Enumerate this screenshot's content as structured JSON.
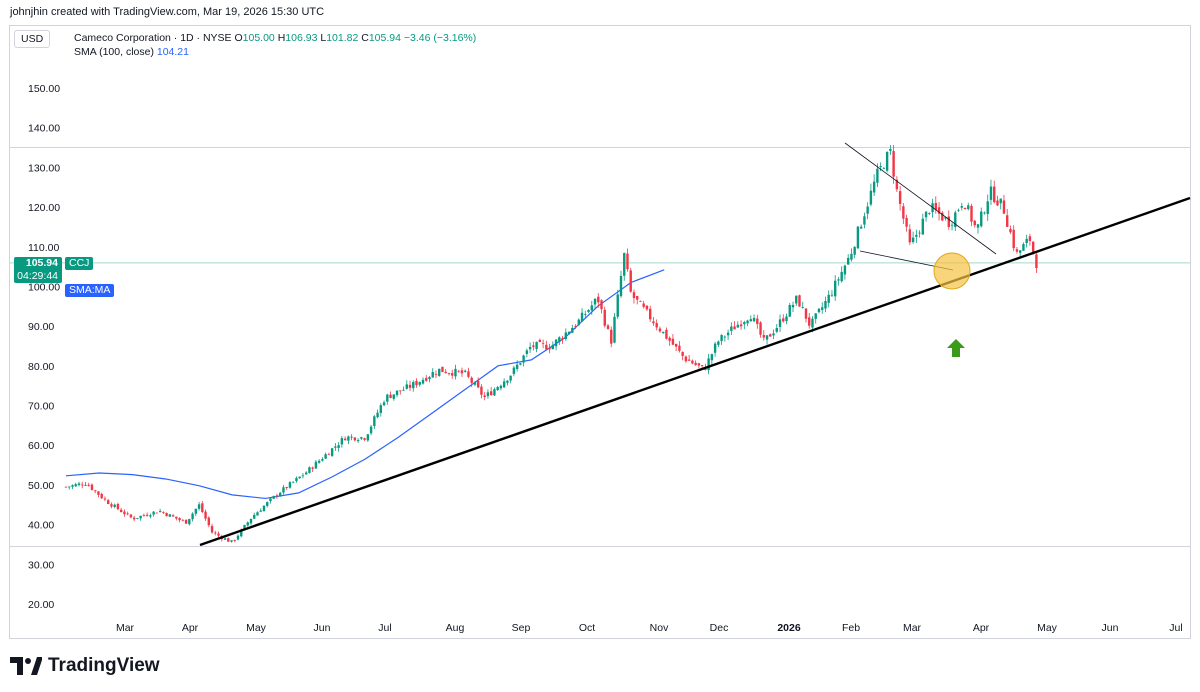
{
  "header": {
    "credit": "johnjhin created with TradingView.com, Mar 19, 2026 15:30 UTC"
  },
  "currency": "USD",
  "legend": {
    "title": "Cameco Corporation · 1D · NYSE",
    "o_label": "O",
    "o": "105.00",
    "h_label": "H",
    "h": "106.93",
    "l_label": "L",
    "l": "101.82",
    "c_label": "C",
    "c": "105.94",
    "change": "−3.46 (−3.16%)",
    "sma_label": "SMA (100, close)",
    "sma_value": "104.21"
  },
  "badges": {
    "price": "105.94",
    "countdown": "04:29:44",
    "ticker": "CCJ",
    "sma": "SMA:MA"
  },
  "footer": {
    "brand": "TradingView",
    "logo_icon": "tradingview-logo-icon"
  },
  "colors": {
    "up": "#089981",
    "down": "#f23645",
    "sma": "#2962ff",
    "trend": "#000000",
    "highlight": "#f5c242",
    "arrow": "#3a9a1a"
  },
  "chart_data": {
    "type": "candlestick",
    "symbol": "CCJ",
    "ylim": [
      15,
      155
    ],
    "y_ticks": [
      "150.00",
      "140.00",
      "130.00",
      "120.00",
      "110.00",
      "100.00",
      "90.00",
      "80.00",
      "70.00",
      "60.00",
      "50.00",
      "40.00",
      "30.00",
      "20.00"
    ],
    "x_ticks": [
      "Mar",
      "Apr",
      "May",
      "Jun",
      "Jul",
      "Aug",
      "Sep",
      "Oct",
      "Nov",
      "Dec",
      "2026",
      "Feb",
      "Mar",
      "Apr",
      "May",
      "Jun",
      "Jul"
    ],
    "x_ticks_bold": [
      "2026"
    ],
    "last_close": 105.94,
    "series": [
      {
        "name": "SMA (100, close)",
        "points": [
          [
            0,
            52.3
          ],
          [
            0.05,
            53
          ],
          [
            0.1,
            52.6
          ],
          [
            0.15,
            51.5
          ],
          [
            0.2,
            49.8
          ],
          [
            0.25,
            47.5
          ],
          [
            0.3,
            46.6
          ],
          [
            0.35,
            48
          ],
          [
            0.4,
            52
          ],
          [
            0.45,
            56.5
          ],
          [
            0.5,
            62
          ],
          [
            0.55,
            68
          ],
          [
            0.6,
            74
          ],
          [
            0.65,
            80
          ],
          [
            0.7,
            81.5
          ],
          [
            0.75,
            87
          ],
          [
            0.8,
            95
          ],
          [
            0.85,
            101
          ],
          [
            0.9,
            104.2
          ]
        ]
      }
    ],
    "ohlc_path": [
      [
        0,
        49.5
      ],
      [
        0.03,
        50.5
      ],
      [
        0.06,
        46
      ],
      [
        0.1,
        41.5
      ],
      [
        0.14,
        43.5
      ],
      [
        0.18,
        40.5
      ],
      [
        0.2,
        45
      ],
      [
        0.22,
        38
      ],
      [
        0.25,
        35.5
      ],
      [
        0.28,
        42
      ],
      [
        0.32,
        48
      ],
      [
        0.36,
        53
      ],
      [
        0.38,
        56
      ],
      [
        0.42,
        62
      ],
      [
        0.45,
        62
      ],
      [
        0.48,
        72
      ],
      [
        0.52,
        75
      ],
      [
        0.56,
        79
      ],
      [
        0.6,
        78
      ],
      [
        0.63,
        72
      ],
      [
        0.67,
        78
      ],
      [
        0.7,
        85
      ],
      [
        0.73,
        85
      ],
      [
        0.77,
        91
      ],
      [
        0.8,
        97
      ],
      [
        0.82,
        86
      ],
      [
        0.84,
        108
      ],
      [
        0.85,
        98
      ],
      [
        0.87,
        94
      ],
      [
        0.9,
        88
      ],
      [
        0.93,
        82
      ],
      [
        0.96,
        79
      ],
      [
        0.98,
        86
      ],
      [
        1.0,
        89
      ],
      [
        1.03,
        93
      ],
      [
        1.05,
        86
      ],
      [
        1.07,
        90
      ],
      [
        1.1,
        97
      ],
      [
        1.12,
        90
      ],
      [
        1.15,
        98
      ],
      [
        1.18,
        108
      ],
      [
        1.2,
        118
      ],
      [
        1.22,
        128
      ],
      [
        1.24,
        134
      ],
      [
        1.25,
        124
      ],
      [
        1.27,
        110
      ],
      [
        1.3,
        120
      ],
      [
        1.33,
        116
      ],
      [
        1.35,
        122
      ],
      [
        1.37,
        114
      ],
      [
        1.39,
        124
      ],
      [
        1.41,
        120
      ],
      [
        1.43,
        108
      ],
      [
        1.45,
        112
      ],
      [
        1.46,
        105.94
      ]
    ],
    "annotations": {
      "trendline_support": {
        "from": [
          "Apr",
          34.5
        ],
        "to": [
          "Jul",
          122
        ]
      },
      "horizontal_levels": [
        135,
        34.5
      ],
      "wedge_upper": {
        "from": [
          "Feb",
          135.8
        ],
        "to": [
          "Apr",
          108
        ]
      },
      "wedge_lower": {
        "from": [
          "Feb",
          109
        ],
        "to": [
          "Mar",
          105
        ]
      },
      "highlight_circle_at": 104.2,
      "arrow": "up-arrow-icon"
    }
  }
}
